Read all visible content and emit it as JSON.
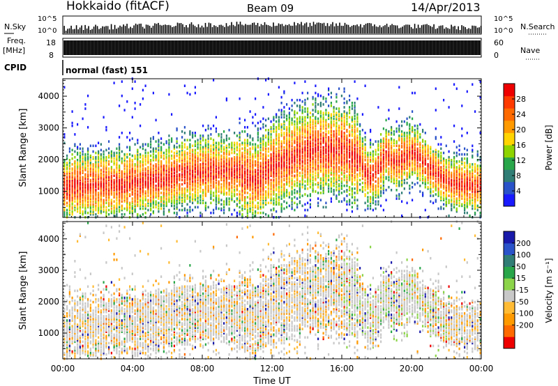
{
  "header": {
    "site": "Hokkaido (fitACF)",
    "beam": "Beam 09",
    "date": "14/Apr/2013"
  },
  "strips": {
    "nsky_label": "N.Sky",
    "nsky_ticks": [
      "10^5",
      "10^0"
    ],
    "nsearch_label": "N.Search",
    "freq_label": "Freq.",
    "freq_unit": "[MHz]",
    "freq_ticks": [
      "18",
      "8"
    ],
    "nave_label": "Nave",
    "nave_ticks": [
      "60",
      "0"
    ],
    "cpid_label": "CPID",
    "cpid_text": "normal (fast) 151"
  },
  "panels": {
    "power": {
      "ylabel": "Slant Range [km]",
      "cbar_label": "Power [dB]"
    },
    "velocity": {
      "ylabel": "Slant Range [km]",
      "cbar_label": "Velocity [m s⁻¹]"
    },
    "xlabel": "Time UT"
  },
  "chart_data": [
    {
      "type": "heatmap",
      "name": "power",
      "x_ticks": [
        "00:00",
        "04:00",
        "08:00",
        "12:00",
        "16:00",
        "20:00",
        "00:00"
      ],
      "y_ticks": [
        1000,
        2000,
        3000,
        4000
      ],
      "ylim": [
        180,
        4550
      ],
      "xlim_hours": [
        0,
        24
      ],
      "ylabel": "Slant Range [km]",
      "colorbar": {
        "label": "Power [dB]",
        "ticks": [
          4,
          8,
          12,
          16,
          20,
          24,
          28
        ],
        "colors": [
          "#1a1aff",
          "#2a52c9",
          "#2f7d74",
          "#2aa64a",
          "#8dd400",
          "#ffd400",
          "#ff9a00",
          "#ff6a00",
          "#ff3a00",
          "#ee0000"
        ]
      },
      "band_center_km": [
        [
          0,
          1150
        ],
        [
          2,
          1200
        ],
        [
          4,
          1250
        ],
        [
          6,
          1450
        ],
        [
          8,
          1650
        ],
        [
          10,
          1600
        ],
        [
          11,
          1400
        ],
        [
          12,
          1800
        ],
        [
          14,
          2300
        ],
        [
          16,
          2350
        ],
        [
          17,
          2000
        ],
        [
          17.5,
          1400
        ],
        [
          18,
          1600
        ],
        [
          18.5,
          2200
        ],
        [
          19,
          1900
        ],
        [
          20,
          2250
        ],
        [
          21,
          1750
        ],
        [
          22,
          1300
        ],
        [
          24,
          1150
        ]
      ]
    },
    {
      "type": "heatmap",
      "name": "velocity",
      "x_ticks": [
        "00:00",
        "04:00",
        "08:00",
        "12:00",
        "16:00",
        "20:00",
        "00:00"
      ],
      "y_ticks": [
        1000,
        2000,
        3000,
        4000
      ],
      "ylim": [
        180,
        4550
      ],
      "xlim_hours": [
        0,
        24
      ],
      "ylabel": "Slant Range [km]",
      "colorbar": {
        "label": "Velocity [m s⁻¹]",
        "ticks": [
          200,
          100,
          50,
          15,
          -15,
          -50,
          -100,
          -200
        ],
        "colors": [
          "#1a1aaa",
          "#2a52c9",
          "#2f7d74",
          "#2aa64a",
          "#8cd44a",
          "#c8c8c8",
          "#ffbb33",
          "#ff9a00",
          "#ff6a00",
          "#ee0000"
        ]
      }
    }
  ]
}
